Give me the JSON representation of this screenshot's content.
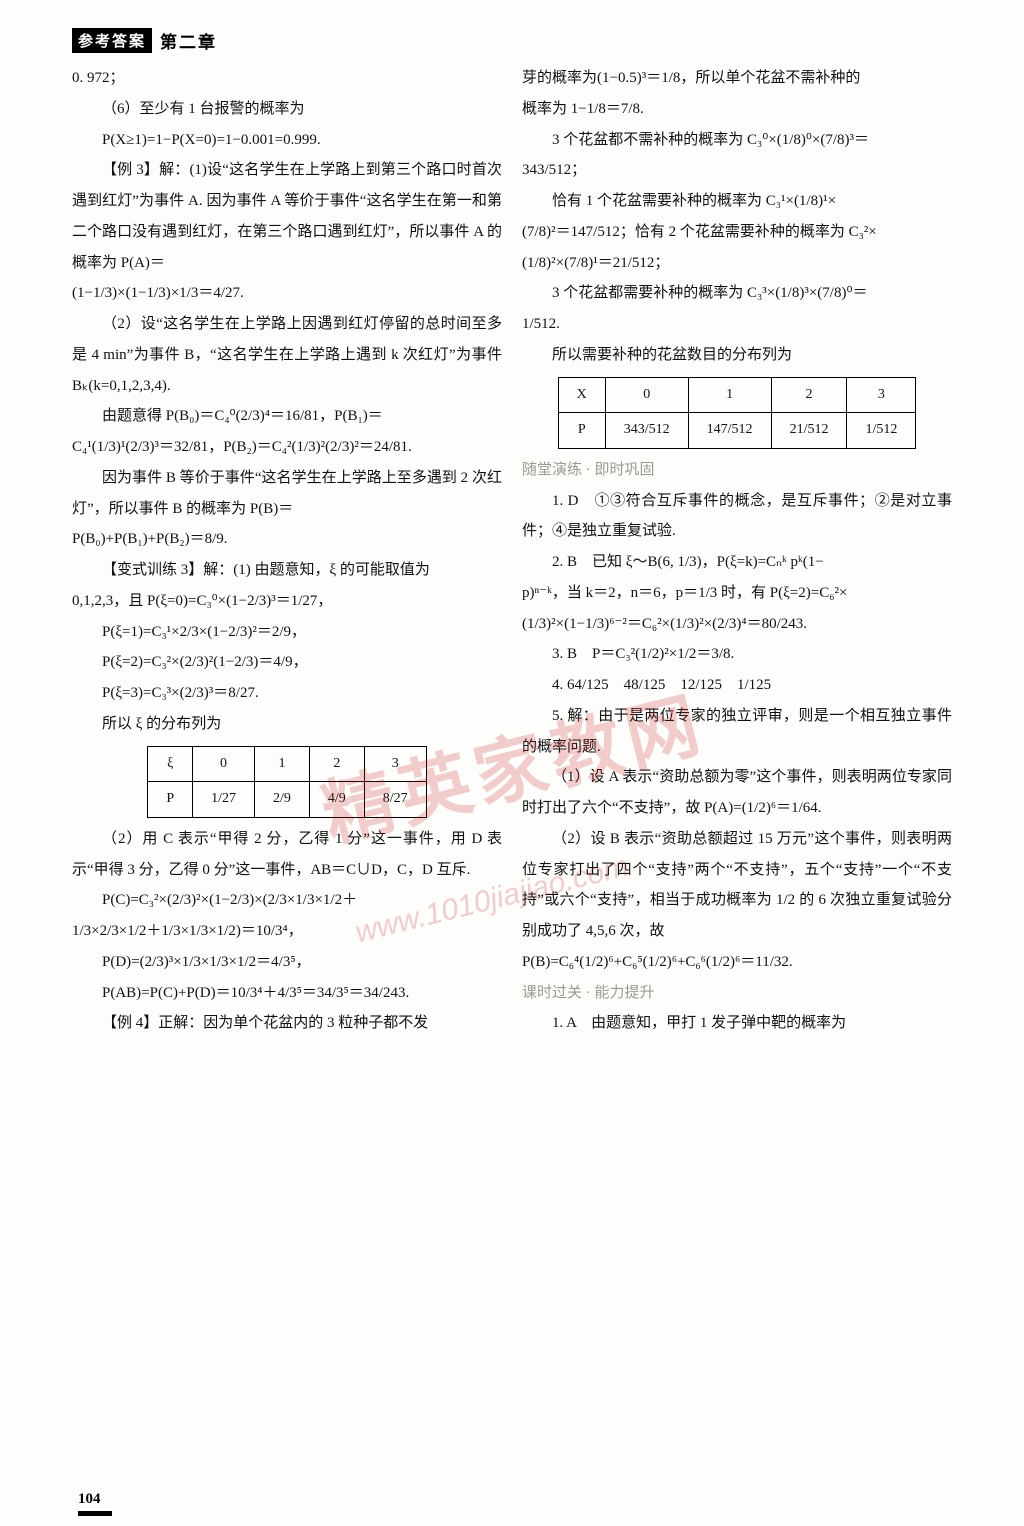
{
  "header": {
    "badge": "参考答案",
    "chapter": "第二章"
  },
  "page_number": "104",
  "watermark_main": "精英家教网",
  "watermark_sub": "www.1010jiajiao.com",
  "left": {
    "l0": "0. 972；",
    "l1": "（6）至少有 1 台报警的概率为",
    "l2": "P(X≥1)=1−P(X=0)=1−0.001=0.999.",
    "l3": "【例 3】解：(1)设“这名学生在上学路上到第三个路口时首次遇到红灯”为事件 A. 因为事件 A 等价于事件“这名学生在第一和第二个路口没有遇到红灯，在第三个路口遇到红灯”，所以事件 A 的概率为 P(A)＝",
    "l4": "(1−1/3)×(1−1/3)×1/3＝4/27.",
    "l5": "（2）设“这名学生在上学路上因遇到红灯停留的总时间至多是 4 min”为事件 B，“这名学生在上学路上遇到 k 次红灯”为事件 Bₖ(k=0,1,2,3,4).",
    "l6": "由题意得 P(B₀)＝C₄⁰(2/3)⁴＝16/81，P(B₁)＝",
    "l7": "C₄¹(1/3)¹(2/3)³＝32/81，P(B₂)＝C₄²(1/3)²(2/3)²＝24/81.",
    "l8": "因为事件 B 等价于事件“这名学生在上学路上至多遇到 2 次红灯”，所以事件 B 的概率为 P(B)＝",
    "l9": "P(B₀)+P(B₁)+P(B₂)＝8/9.",
    "l10": "【变式训练 3】解：(1) 由题意知，ξ 的可能取值为",
    "l11": "0,1,2,3，且 P(ξ=0)=C₃⁰×(1−2/3)³＝1/27，",
    "l12": "P(ξ=1)=C₃¹×2/3×(1−2/3)²＝2/9，",
    "l13": "P(ξ=2)=C₃²×(2/3)²(1−2/3)＝4/9，",
    "l14": "P(ξ=3)=C₃³×(2/3)³＝8/27.",
    "l15": "所以 ξ 的分布列为",
    "table1": {
      "head": [
        "ξ",
        "0",
        "1",
        "2",
        "3"
      ],
      "row": [
        "P",
        "1/27",
        "2/9",
        "4/9",
        "8/27"
      ]
    },
    "l16": "（2）用 C 表示“甲得 2 分，乙得 1 分”这一事件，用 D 表示“甲得 3 分，乙得 0 分”这一事件，AB＝C∪D，C，D 互斥.",
    "l17": "P(C)=C₃²×(2/3)²×(1−2/3)×(2/3×1/3×1/2＋",
    "l18": "1/3×2/3×1/2＋1/3×1/3×1/2)＝10/3⁴，",
    "l19": "P(D)=(2/3)³×1/3×1/3×1/2＝4/3⁵，",
    "l20": "P(AB)=P(C)+P(D)＝10/3⁴＋4/3⁵＝34/3⁵＝34/243.",
    "l21": "【例 4】正解：因为单个花盆内的 3 粒种子都不发"
  },
  "right": {
    "r1": "芽的概率为(1−0.5)³＝1/8，所以单个花盆不需补种的",
    "r2": "概率为 1−1/8＝7/8.",
    "r3": "3 个花盆都不需补种的概率为 C₃⁰×(1/8)⁰×(7/8)³＝",
    "r4": "343/512；",
    "r5": "恰有 1 个花盆需要补种的概率为 C₃¹×(1/8)¹×",
    "r6": "(7/8)²＝147/512；恰有 2 个花盆需要补种的概率为 C₃²×",
    "r7": "(1/8)²×(7/8)¹＝21/512；",
    "r8": "3 个花盆都需要补种的概率为 C₃³×(1/8)³×(7/8)⁰＝",
    "r9": "1/512.",
    "r10": "所以需要补种的花盆数目的分布列为",
    "table2": {
      "head": [
        "X",
        "0",
        "1",
        "2",
        "3"
      ],
      "row": [
        "P",
        "343/512",
        "147/512",
        "21/512",
        "1/512"
      ]
    },
    "r11": "随堂演练 · 即时巩固",
    "r12": "1. D　①③符合互斥事件的概念，是互斥事件；②是对立事件；④是独立重复试验.",
    "r13": "2. B　已知 ξ～B(6, 1/3)，P(ξ=k)=Cₙᵏ pᵏ(1−",
    "r14": "p)ⁿ⁻ᵏ，当 k＝2，n＝6，p＝1/3 时，有 P(ξ=2)=C₆²×",
    "r15": "(1/3)²×(1−1/3)⁶⁻²＝C₆²×(1/3)²×(2/3)⁴＝80/243.",
    "r16": "3. B　P＝C₃²(1/2)²×1/2＝3/8.",
    "r17": "4. 64/125　48/125　12/125　1/125",
    "r18": "5. 解：由于是两位专家的独立评审，则是一个相互独立事件的概率问题.",
    "r19": "（1）设 A 表示“资助总额为零”这个事件，则表明两位专家同时打出了六个“不支持”，故 P(A)=(1/2)⁶＝1/64.",
    "r20": "（2）设 B 表示“资助总额超过 15 万元”这个事件，则表明两位专家打出了四个“支持”两个“不支持”，五个“支持”一个“不支持”或六个“支持”，相当于成功概率为 1/2 的 6 次独立重复试验分别成功了 4,5,6 次，故",
    "r21": "P(B)=C₆⁴(1/2)⁶+C₆⁵(1/2)⁶+C₆⁶(1/2)⁶＝11/32.",
    "r22": "课时过关 · 能力提升",
    "r23": "1. A　由题意知，甲打 1 发子弹中靶的概率为"
  }
}
